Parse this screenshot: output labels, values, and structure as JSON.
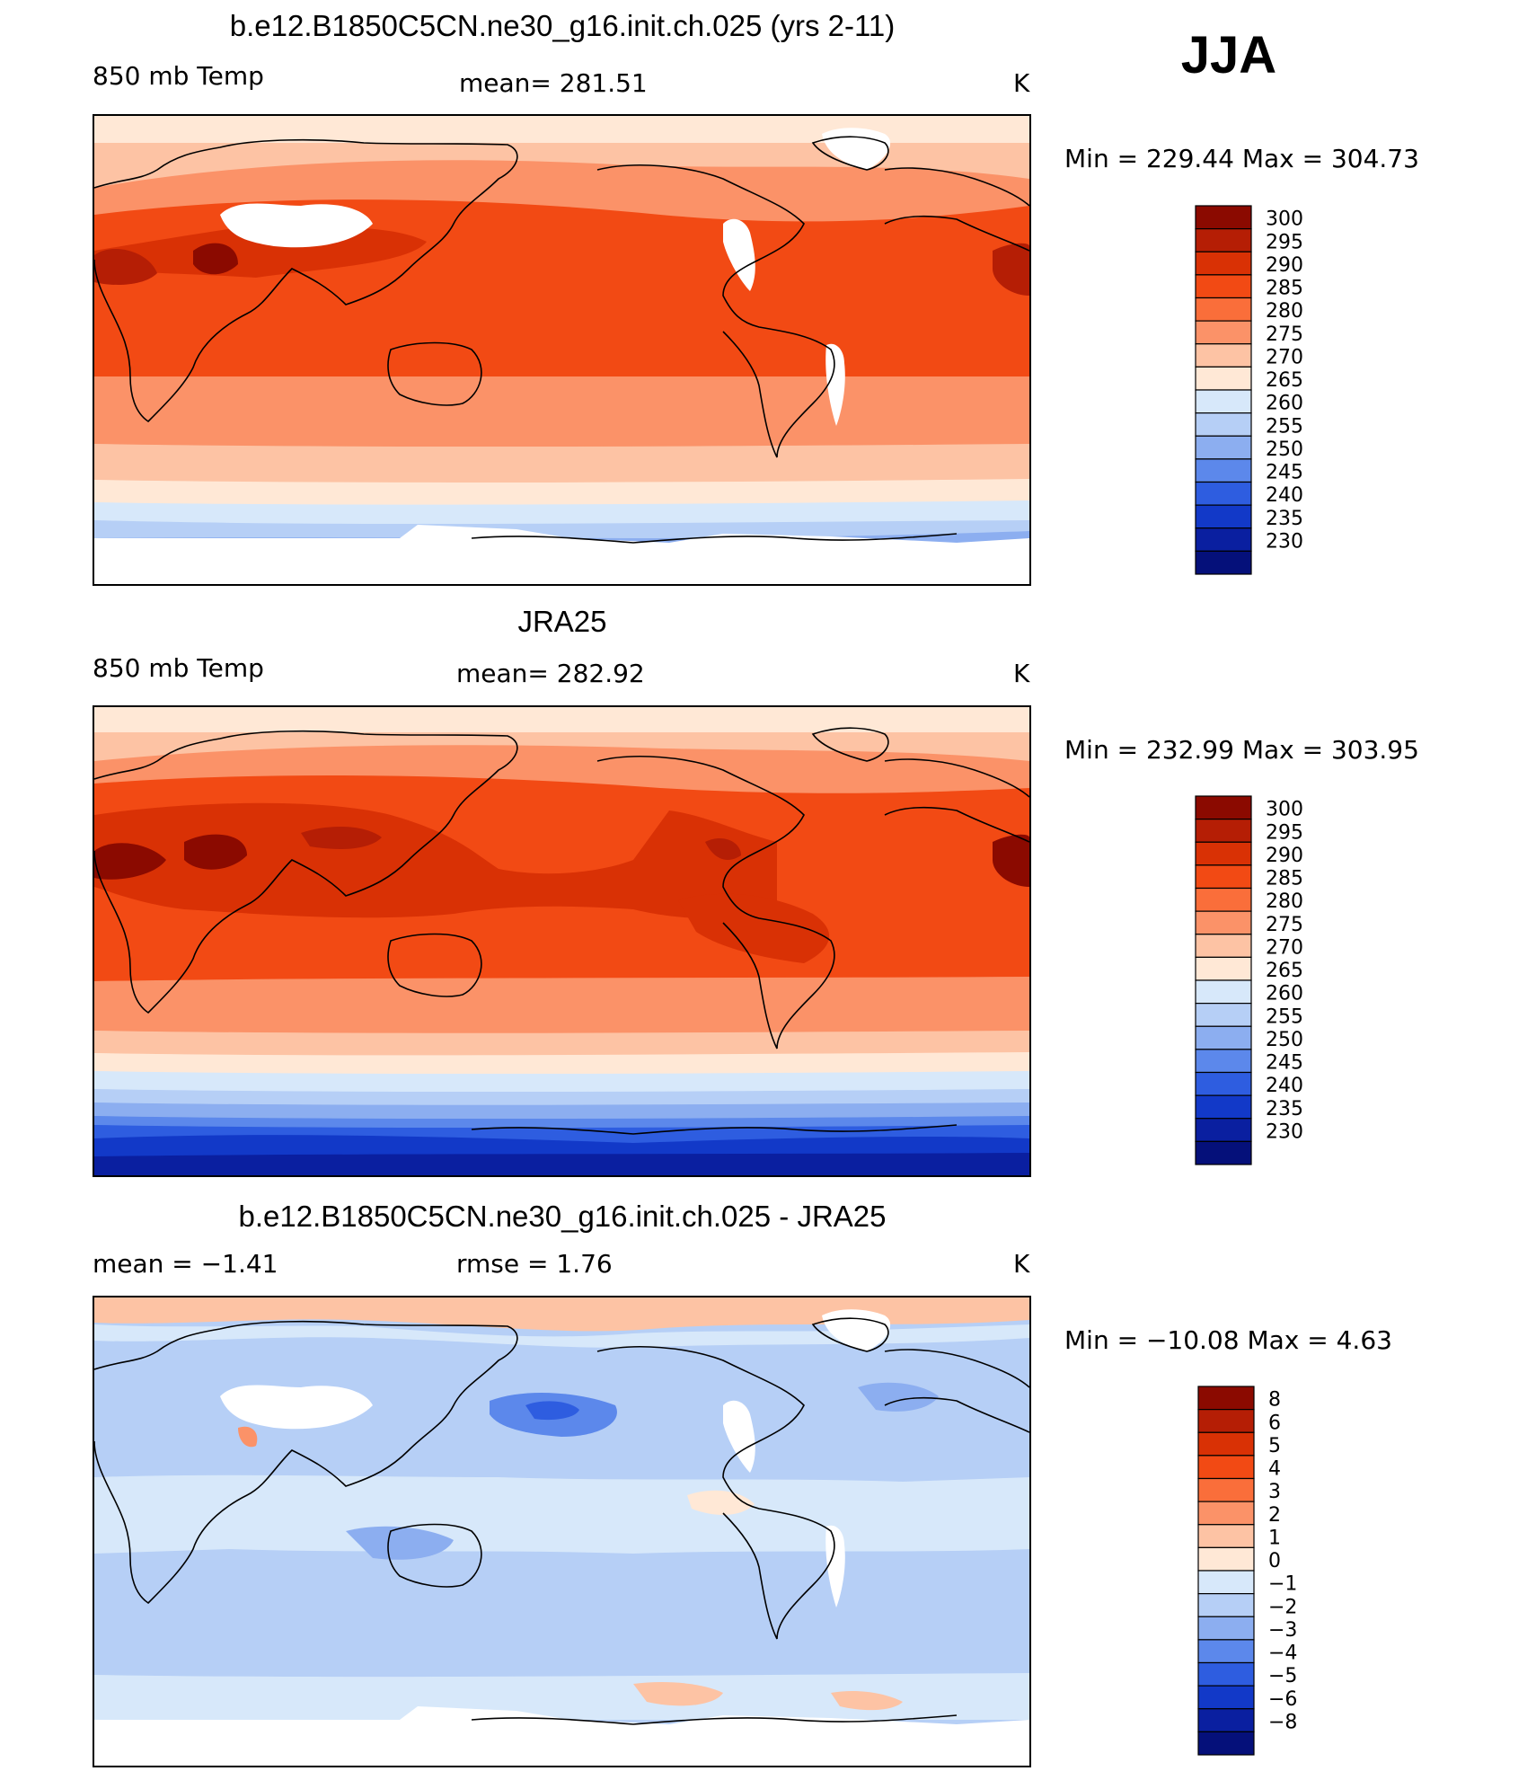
{
  "season": "JJA",
  "panels": [
    {
      "title": "b.e12.B1850C5CN.ne30_g16.init.ch.025 (yrs 2-11)",
      "left_label": "850 mb Temp",
      "center_label": "mean=  281.51",
      "units": "K",
      "minmax": "Min  =  229.44  Max  =  304.73",
      "colorbar": {
        "labels": [
          "300",
          "295",
          "290",
          "285",
          "280",
          "275",
          "270",
          "265",
          "260",
          "255",
          "250",
          "245",
          "240",
          "235",
          "230"
        ],
        "colors": [
          "#8B0A00",
          "#B51E05",
          "#D93105",
          "#F24A14",
          "#FA6E3A",
          "#FB9268",
          "#FDC3A4",
          "#FFE8D6",
          "#D7E8FA",
          "#B6CFF6",
          "#8CAEF0",
          "#5C88EB",
          "#2E5DE0",
          "#1239C8",
          "#0A1FA0",
          "#05107A"
        ]
      }
    },
    {
      "title": "JRA25",
      "left_label": "850 mb Temp",
      "center_label": "mean=  282.92",
      "units": "K",
      "minmax": "Min  =  232.99  Max  =  303.95",
      "colorbar": {
        "labels": [
          "300",
          "295",
          "290",
          "285",
          "280",
          "275",
          "270",
          "265",
          "260",
          "255",
          "250",
          "245",
          "240",
          "235",
          "230"
        ],
        "colors": [
          "#8B0A00",
          "#B51E05",
          "#D93105",
          "#F24A14",
          "#FA6E3A",
          "#FB9268",
          "#FDC3A4",
          "#FFE8D6",
          "#D7E8FA",
          "#B6CFF6",
          "#8CAEF0",
          "#5C88EB",
          "#2E5DE0",
          "#1239C8",
          "#0A1FA0",
          "#05107A"
        ]
      }
    },
    {
      "title": "b.e12.B1850C5CN.ne30_g16.init.ch.025 - JRA25",
      "left_label": "mean  =    −1.41",
      "center_label": "rmse  =     1.76",
      "units": "K",
      "minmax": "Min  =  −10.08  Max  =     4.63",
      "colorbar": {
        "labels": [
          "8",
          "6",
          "5",
          "4",
          "3",
          "2",
          "1",
          "0",
          "−1",
          "−2",
          "−3",
          "−4",
          "−5",
          "−6",
          "−8"
        ],
        "colors": [
          "#8B0A00",
          "#B51E05",
          "#D93105",
          "#F24A14",
          "#FA6E3A",
          "#FB9268",
          "#FDC3A4",
          "#FFE8D6",
          "#D7E8FA",
          "#B6CFF6",
          "#8CAEF0",
          "#5C88EB",
          "#2E5DE0",
          "#1239C8",
          "#0A1FA0",
          "#05107A"
        ]
      }
    }
  ]
}
